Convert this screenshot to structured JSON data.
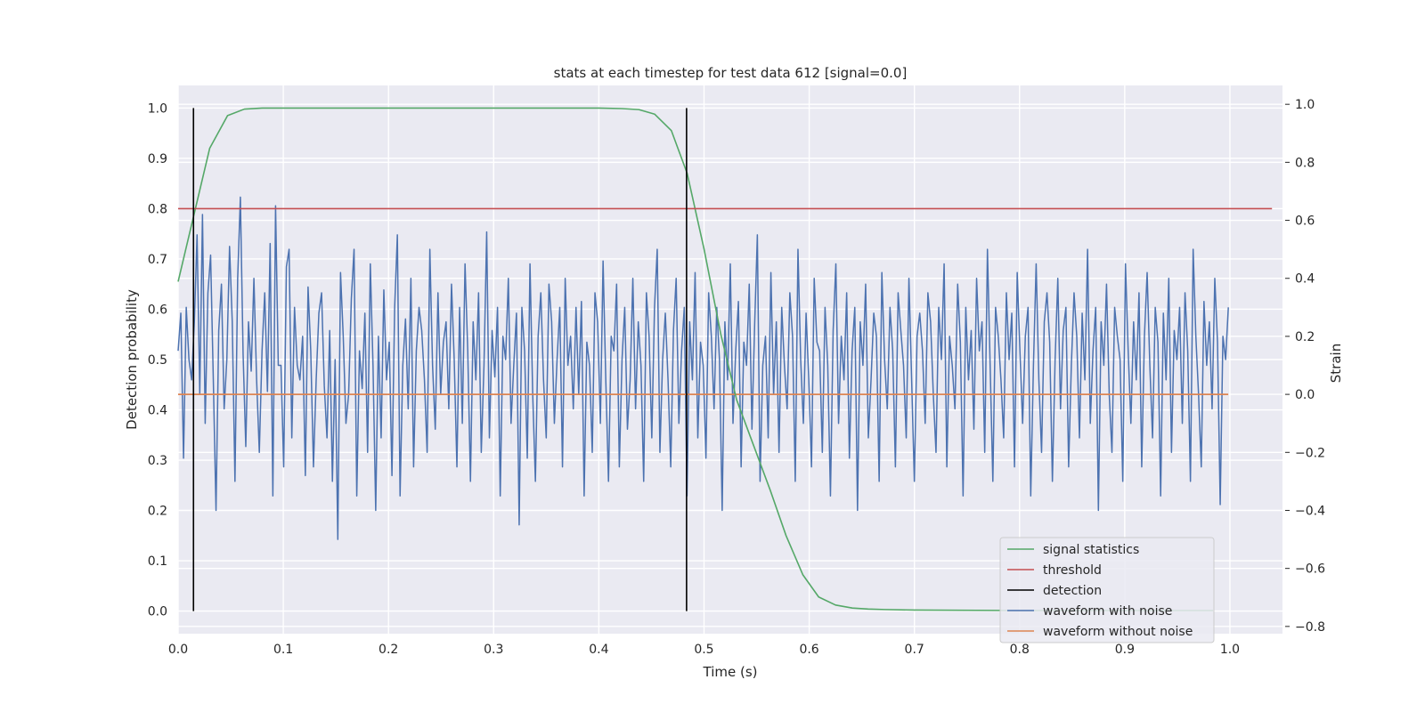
{
  "chart_data": {
    "type": "line",
    "title": "stats at each timestep for test data 612 [signal=0.0]",
    "xlabel": "Time (s)",
    "ylabel": "Detection probability",
    "ylabel_right": "Strain",
    "xlim": [
      0.0,
      1.05
    ],
    "ylim": [
      -0.045,
      1.045
    ],
    "ylim_right": [
      -0.825,
      1.065
    ],
    "xticks": [
      "0.0",
      "0.1",
      "0.2",
      "0.3",
      "0.4",
      "0.5",
      "0.6",
      "0.7",
      "0.8",
      "0.9",
      "1.0"
    ],
    "yticks": [
      "0.0",
      "0.1",
      "0.2",
      "0.3",
      "0.4",
      "0.5",
      "0.6",
      "0.7",
      "0.8",
      "0.9",
      "1.0"
    ],
    "yticks_right": [
      "1.0",
      "0.8",
      "0.6",
      "0.4",
      "0.2",
      "0.0",
      "−0.2",
      "−0.4",
      "−0.6",
      "−0.8"
    ],
    "grid": true,
    "legend_position": "lower-right",
    "series": [
      {
        "name": "signal statistics",
        "color": "#55a868",
        "axis": "left",
        "x": [
          0.0,
          0.03,
          0.047,
          0.063,
          0.08,
          0.1,
          0.2,
          0.3,
          0.4,
          0.422,
          0.438,
          0.453,
          0.469,
          0.484,
          0.5,
          0.516,
          0.531,
          0.547,
          0.563,
          0.578,
          0.594,
          0.609,
          0.625,
          0.641,
          0.656,
          0.672,
          0.7,
          0.8,
          0.9,
          0.984
        ],
        "values": [
          0.655,
          0.92,
          0.985,
          0.998,
          1.0,
          1.0,
          1.0,
          1.0,
          1.0,
          0.999,
          0.997,
          0.988,
          0.955,
          0.87,
          0.72,
          0.55,
          0.42,
          0.33,
          0.24,
          0.15,
          0.072,
          0.028,
          0.012,
          0.006,
          0.004,
          0.003,
          0.002,
          0.001,
          0.001,
          0.001
        ]
      },
      {
        "name": "threshold",
        "color": "#c44e52",
        "axis": "left",
        "x": [
          0.0,
          1.04
        ],
        "values": [
          0.8,
          0.8
        ]
      },
      {
        "name": "detection",
        "color": "#000000",
        "axis": "left",
        "x": [
          0.0146,
          0.4834
        ],
        "values": [
          1.0,
          1.0
        ]
      },
      {
        "name": "waveform with noise",
        "color": "#4c72b0",
        "axis": "right",
        "x_start": 0.0,
        "x_end": 0.9985,
        "values": [
          0.15,
          0.28,
          -0.22,
          0.3,
          0.12,
          0.05,
          0.25,
          0.55,
          0.0,
          0.62,
          -0.1,
          0.35,
          0.48,
          0.05,
          -0.4,
          0.22,
          0.38,
          -0.05,
          0.12,
          0.51,
          0.25,
          -0.3,
          0.4,
          0.68,
          0.14,
          -0.18,
          0.25,
          0.08,
          0.4,
          0.05,
          -0.2,
          0.15,
          0.35,
          0.01,
          0.52,
          -0.35,
          0.65,
          0.1,
          0.1,
          -0.25,
          0.44,
          0.5,
          -0.15,
          0.3,
          0.1,
          0.05,
          0.2,
          -0.28,
          0.37,
          0.15,
          -0.25,
          0.05,
          0.28,
          0.35,
          0.03,
          -0.15,
          0.22,
          -0.3,
          0.12,
          -0.5,
          0.42,
          0.2,
          -0.1,
          0.0,
          0.33,
          0.5,
          -0.35,
          0.15,
          0.02,
          0.28,
          -0.2,
          0.45,
          0.1,
          -0.4,
          0.2,
          -0.15,
          0.36,
          0.05,
          0.18,
          -0.28,
          0.3,
          0.55,
          -0.35,
          0.1,
          0.26,
          -0.05,
          0.4,
          -0.25,
          0.15,
          0.3,
          0.22,
          0.05,
          -0.2,
          0.5,
          0.1,
          -0.12,
          0.35,
          0.0,
          0.18,
          0.25,
          -0.05,
          0.38,
          0.12,
          -0.25,
          0.3,
          -0.1,
          0.45,
          0.15,
          -0.3,
          0.25,
          0.05,
          0.35,
          -0.2,
          0.1,
          0.56,
          -0.15,
          0.22,
          0.06,
          0.3,
          -0.35,
          0.2,
          0.12,
          0.4,
          -0.1,
          0.1,
          0.28,
          -0.45,
          0.3,
          0.15,
          -0.22,
          0.45,
          0.0,
          -0.3,
          0.2,
          0.35,
          0.05,
          -0.15,
          0.38,
          0.25,
          -0.1,
          0.12,
          0.3,
          -0.25,
          0.4,
          0.1,
          0.2,
          -0.05,
          0.3,
          0.0,
          0.32,
          -0.35,
          0.18,
          0.1,
          -0.2,
          0.35,
          0.25,
          -0.1,
          0.46,
          0.05,
          -0.3,
          0.2,
          0.15,
          0.38,
          -0.25,
          0.12,
          0.3,
          -0.12,
          0.05,
          0.4,
          -0.05,
          0.25,
          0.1,
          -0.3,
          0.35,
          0.2,
          -0.15,
          0.3,
          0.5,
          -0.2,
          0.12,
          0.28,
          0.05,
          -0.25,
          0.22,
          0.4,
          -0.1,
          0.15,
          0.3,
          -0.35,
          0.25,
          0.05,
          0.42,
          -0.15,
          0.18,
          0.1,
          -0.22,
          0.35,
          0.2,
          -0.05,
          0.3,
          0.12,
          -0.4,
          0.25,
          0.05,
          0.45,
          -0.1,
          0.15,
          0.32,
          -0.25,
          0.18,
          0.1,
          0.38,
          -0.12,
          0.24,
          0.55,
          -0.3,
          0.1,
          0.2,
          -0.15,
          0.42,
          0.0,
          0.25,
          -0.2,
          0.3,
          0.1,
          -0.05,
          0.35,
          0.2,
          -0.3,
          0.5,
          0.12,
          -0.1,
          0.28,
          0.05,
          -0.25,
          0.4,
          0.18,
          0.15,
          -0.2,
          0.3,
          0.1,
          -0.35,
          0.22,
          0.45,
          -0.1,
          0.2,
          0.05,
          0.35,
          -0.22,
          0.15,
          0.3,
          -0.4,
          0.25,
          0.1,
          0.38,
          -0.15,
          0.05,
          0.28,
          0.2,
          -0.3,
          0.42,
          0.12,
          -0.05,
          0.3,
          0.15,
          -0.25,
          0.35,
          0.22,
          0.1,
          -0.15,
          0.4,
          0.05,
          -0.3,
          0.2,
          0.28,
          0.15,
          -0.1,
          0.35,
          0.25,
          0.0,
          -0.2,
          0.3,
          0.12,
          0.45,
          -0.25,
          0.2,
          0.1,
          -0.05,
          0.38,
          0.18,
          -0.35,
          0.3,
          0.05,
          0.22,
          -0.12,
          0.4,
          0.15,
          0.25,
          -0.2,
          0.5,
          0.1,
          -0.3,
          0.3,
          0.2,
          0.05,
          -0.15,
          0.35,
          0.12,
          0.28,
          -0.25,
          0.42,
          0.15,
          -0.1,
          0.2,
          0.3,
          -0.35,
          0.1,
          0.45,
          0.05,
          -0.2,
          0.25,
          0.35,
          0.18,
          -0.3,
          0.12,
          0.4,
          -0.05,
          0.22,
          0.3,
          -0.25,
          0.1,
          0.35,
          0.2,
          -0.15,
          0.28,
          0.05,
          0.5,
          -0.1,
          0.15,
          0.3,
          -0.4,
          0.25,
          0.1,
          0.38,
          0.0,
          -0.2,
          0.3,
          0.2,
          0.12,
          -0.3,
          0.45,
          0.15,
          -0.1,
          0.25,
          0.05,
          0.35,
          -0.25,
          0.2,
          0.42,
          0.1,
          -0.15,
          0.3,
          0.18,
          -0.35,
          0.28,
          0.05,
          0.4,
          -0.2,
          0.22,
          0.12,
          0.3,
          -0.1,
          0.35,
          0.15,
          -0.3,
          0.5,
          0.2,
          0.0,
          -0.25,
          0.32,
          0.1,
          0.25,
          -0.05,
          0.4,
          0.18,
          -0.38,
          0.2,
          0.12,
          0.3
        ]
      },
      {
        "name": "waveform without noise",
        "color": "#dd8452",
        "axis": "right",
        "x": [
          0.0,
          0.9985
        ],
        "values": [
          0.0,
          0.0
        ]
      }
    ]
  }
}
